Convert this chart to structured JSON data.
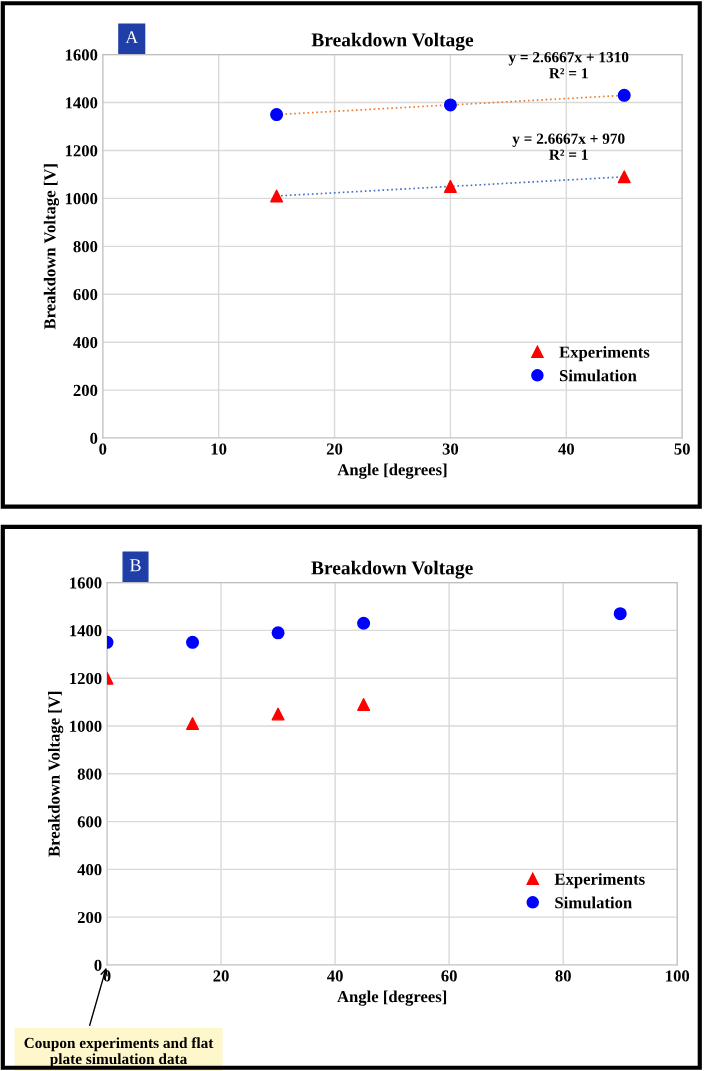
{
  "chart_data": [
    {
      "type": "scatter",
      "title": "Breakdown Voltage",
      "xlabel": "Angle [degrees]",
      "ylabel": "Breakdown Voltage [V]",
      "xlim": [
        0,
        50
      ],
      "xticks": [
        0,
        10,
        20,
        30,
        40,
        50
      ],
      "ylim": [
        0,
        1600
      ],
      "yticks": [
        0,
        200,
        400,
        600,
        800,
        1000,
        1200,
        1400,
        1600
      ],
      "grid": true,
      "legend": "bottom right",
      "series": [
        {
          "name": "Experiments",
          "color": "#ff0000",
          "marker": "triangle",
          "x": [
            15,
            30,
            45
          ],
          "values": [
            1010,
            1050,
            1090
          ]
        },
        {
          "name": "Simulation",
          "color": "#0000ff",
          "marker": "circle",
          "x": [
            15,
            30,
            45
          ],
          "values": [
            1350,
            1390,
            1430
          ]
        },
        {
          "type": "line",
          "color": "#4472c4",
          "line_style": "dotted",
          "x": [
            15,
            45
          ],
          "values": [
            1010,
            1090
          ]
        },
        {
          "type": "line",
          "color": "#ed7d31",
          "line_style": "dotted",
          "x": [
            15,
            45
          ],
          "values": [
            1350,
            1430
          ]
        }
      ],
      "annotations": [
        "A",
        "y = 2.6667x + 970\nR² = 1",
        "y = 2.6667x + 1310\nR² = 1"
      ]
    },
    {
      "type": "scatter",
      "title": "Breakdown Voltage",
      "xlabel": "Angle [degrees]",
      "ylabel": "Breakdown Voltage [V]",
      "xlim": [
        0,
        100
      ],
      "xticks": [
        0,
        20,
        40,
        60,
        80,
        100
      ],
      "ylim": [
        0,
        1600
      ],
      "yticks": [
        0,
        200,
        400,
        600,
        800,
        1000,
        1200,
        1400,
        1600
      ],
      "grid": true,
      "legend": "bottom right",
      "series": [
        {
          "name": "Experiments",
          "color": "#ff0000",
          "marker": "triangle",
          "x": [
            0,
            15,
            30,
            45
          ],
          "values": [
            1200,
            1010,
            1050,
            1090
          ]
        },
        {
          "name": "Simulation",
          "color": "#0000ff",
          "marker": "circle",
          "x": [
            0,
            15,
            30,
            45,
            90
          ],
          "values": [
            1350,
            1350,
            1390,
            1430,
            1470
          ]
        }
      ],
      "annotations": [
        "B",
        "Coupon experiments and flat\nplate simulation data"
      ]
    }
  ]
}
